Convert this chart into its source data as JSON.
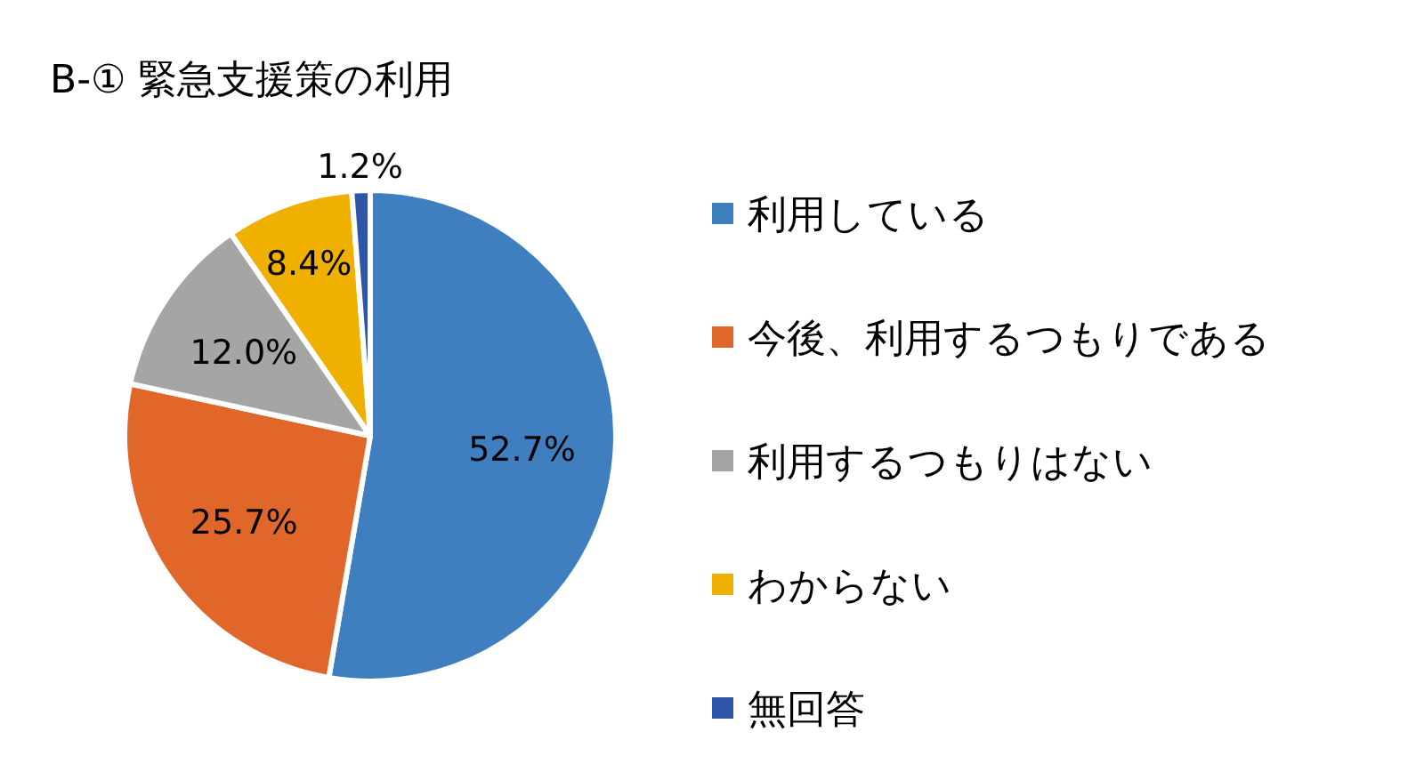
{
  "chart_data": {
    "type": "pie",
    "title": "B-① 緊急支援策の利用",
    "categories": [
      "利用している",
      "今後、利用するつもりである",
      "利用するつもりはない",
      "わからない",
      "無回答"
    ],
    "values": [
      52.7,
      25.7,
      12.0,
      8.4,
      1.2
    ],
    "colors": [
      "#3f7fbf",
      "#e0662a",
      "#a5a5a5",
      "#f0b000",
      "#2e55a8"
    ],
    "value_labels": [
      "52.7%",
      "25.7%",
      "12.0%",
      "8.4%",
      "1.2%"
    ],
    "legend": "right"
  }
}
